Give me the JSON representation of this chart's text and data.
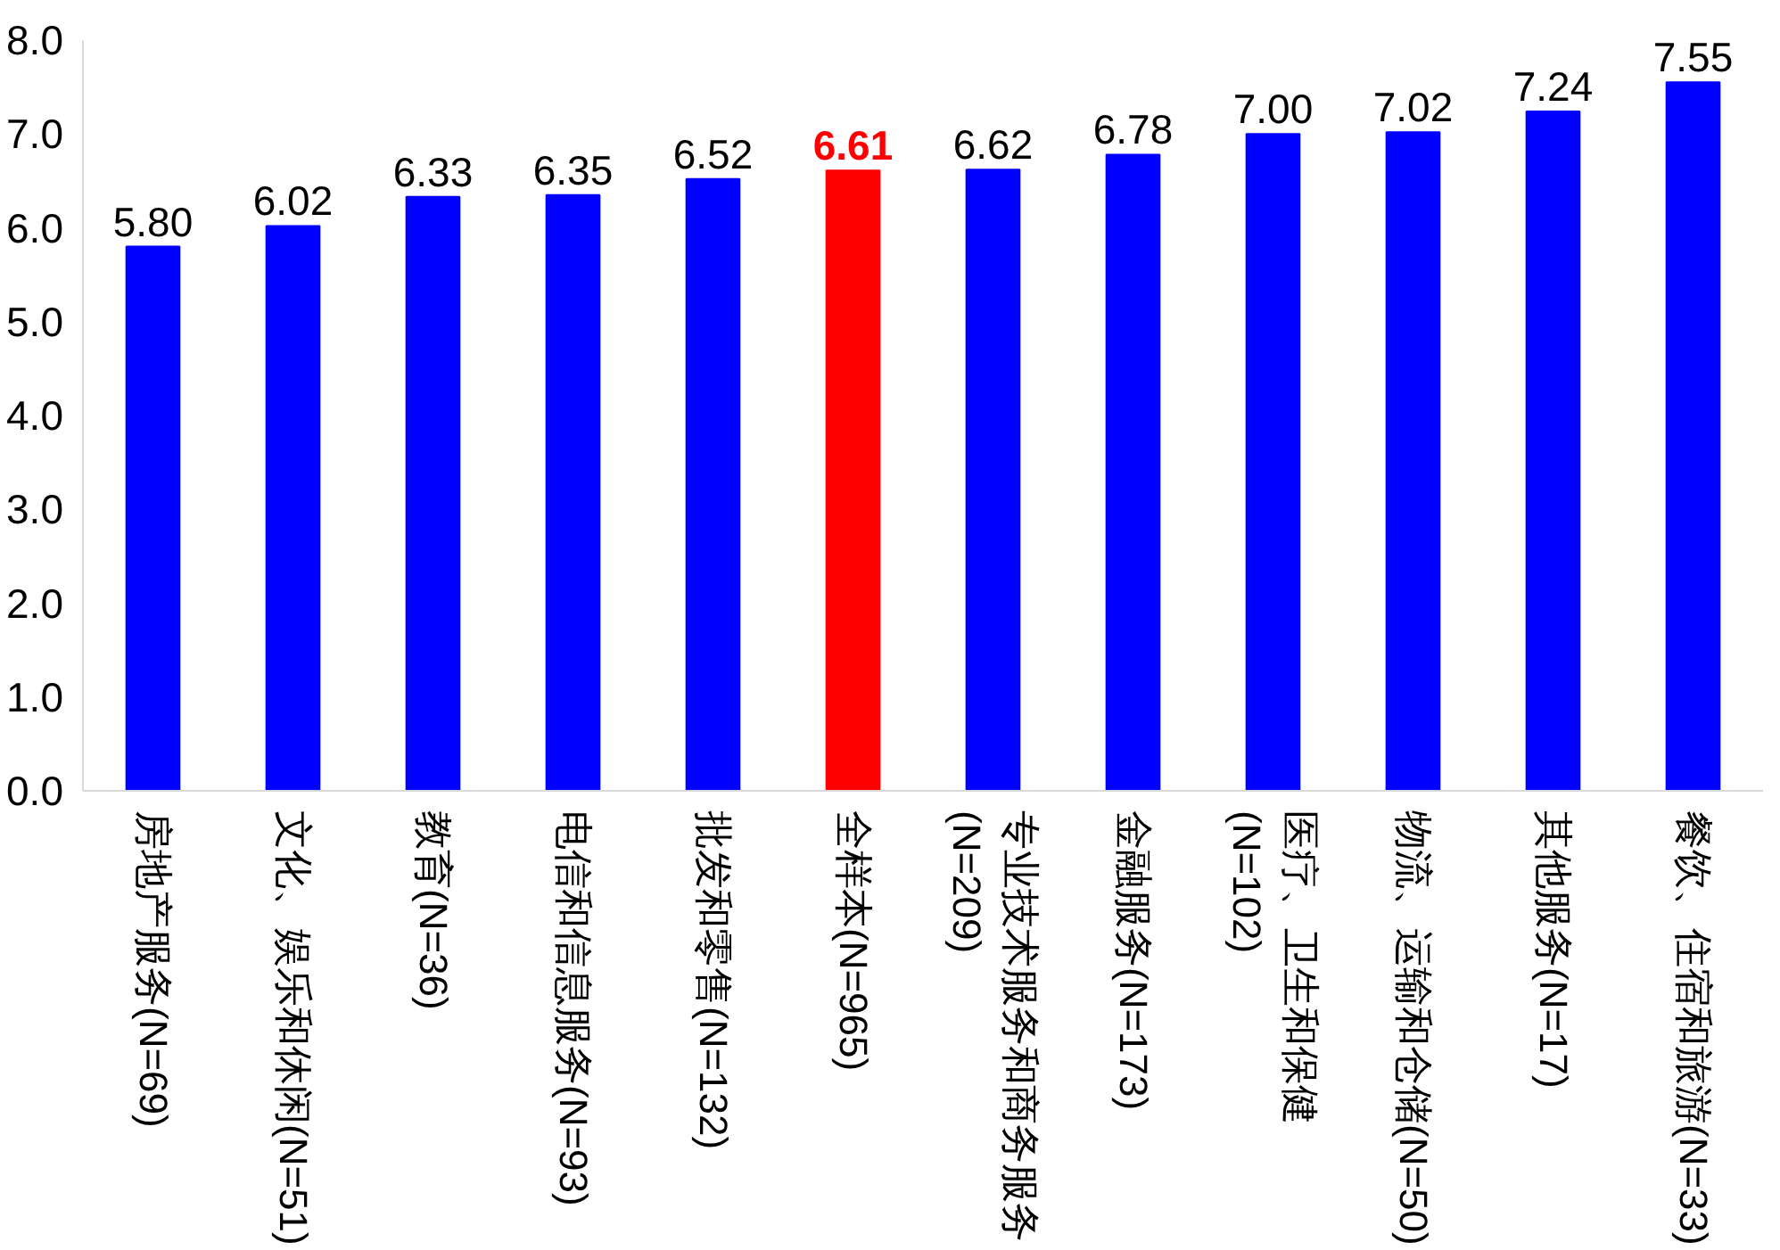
{
  "chart_data": {
    "type": "bar",
    "categories": [
      "房地产服务(N=69)",
      "文化、娱乐和休闲(N=51)",
      "教育(N=36)",
      "电信和信息服务(N=93)",
      "批发和零售(N=132)",
      "全样本(N=965)",
      "专业技术服务和商务服务(N=209)",
      "金融服务(N=173)",
      "医疗、卫生和保健(N=102)",
      "物流、运输和仓储(N=50)",
      "其他服务(N=17)",
      "餐饮、住宿和旅游(N=33)"
    ],
    "values": [
      5.8,
      6.02,
      6.33,
      6.35,
      6.52,
      6.61,
      6.62,
      6.78,
      7.0,
      7.02,
      7.24,
      7.55
    ],
    "value_labels": [
      "5.80",
      "6.02",
      "6.33",
      "6.35",
      "6.52",
      "6.61",
      "6.62",
      "6.78",
      "7.00",
      "7.02",
      "7.24",
      "7.55"
    ],
    "color": "#0000ff",
    "colors": [
      "#0000ff",
      "#0000ff",
      "#0000ff",
      "#0000ff",
      "#0000ff",
      "#ff0000",
      "#0000ff",
      "#0000ff",
      "#0000ff",
      "#0000ff",
      "#0000ff",
      "#0000ff"
    ],
    "ylim": [
      0,
      8
    ],
    "yticks": [
      {
        "value": 0,
        "label": "0.0"
      },
      {
        "value": 1,
        "label": "1.0"
      },
      {
        "value": 2,
        "label": "2.0"
      },
      {
        "value": 3,
        "label": "3.0"
      },
      {
        "value": 4,
        "label": "4.0"
      },
      {
        "value": 5,
        "label": "5.0"
      },
      {
        "value": 6,
        "label": "6.0"
      },
      {
        "value": 7,
        "label": "7.0"
      },
      {
        "value": 8,
        "label": "8.0"
      }
    ],
    "grid": false
  }
}
